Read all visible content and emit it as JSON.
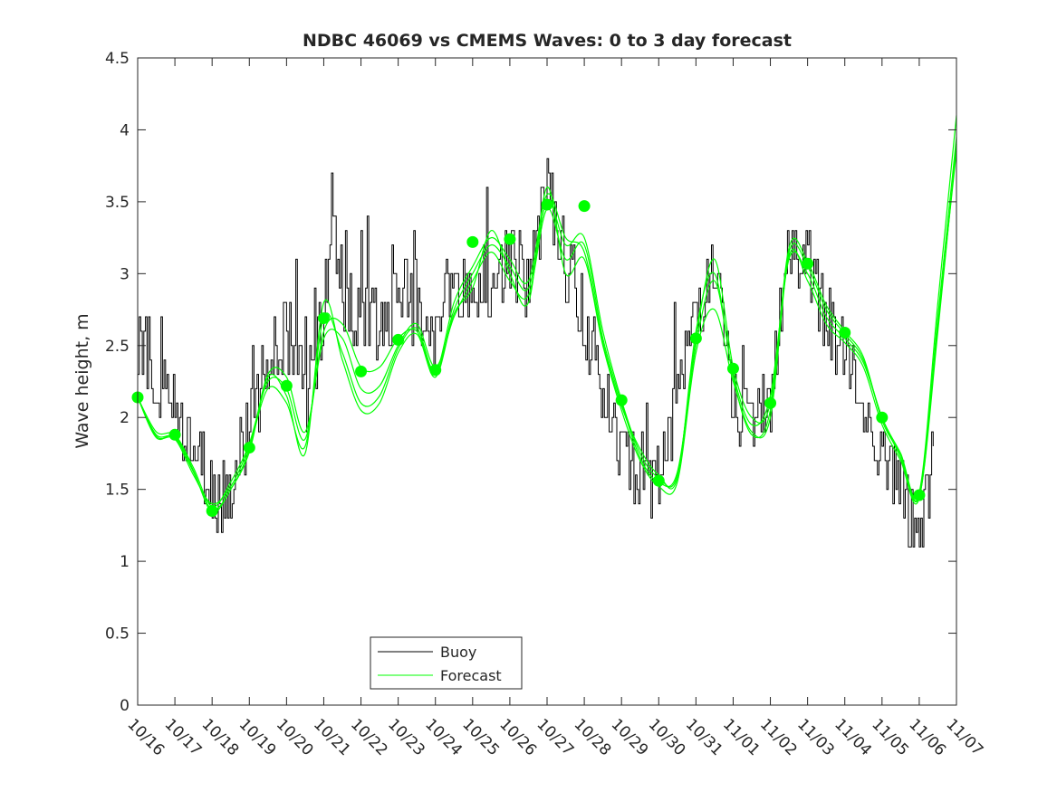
{
  "chart_data": {
    "type": "line",
    "title": "NDBC 46069 vs CMEMS Waves: 0 to 3 day forecast",
    "xlabel": "",
    "ylabel": "Wave height, m",
    "xlim_day": [
      0,
      22
    ],
    "ylim": [
      0,
      4.5
    ],
    "yticks": [
      0,
      0.5,
      1,
      1.5,
      2,
      2.5,
      3,
      3.5,
      4,
      4.5
    ],
    "ytick_labels": [
      "0",
      "0.5",
      "1",
      "1.5",
      "2",
      "2.5",
      "3",
      "3.5",
      "4",
      "4.5"
    ],
    "xtick_labels": [
      "10/16",
      "10/17",
      "10/18",
      "10/19",
      "10/20",
      "10/21",
      "10/22",
      "10/23",
      "10/24",
      "10/25",
      "10/26",
      "10/27",
      "10/28",
      "10/29",
      "10/30",
      "10/31",
      "11/01",
      "11/02",
      "11/03",
      "11/04",
      "11/05",
      "11/06",
      "11/07"
    ],
    "grid": false,
    "legend": {
      "position": "bottom-center",
      "entries": [
        "Buoy",
        "Forecast"
      ]
    },
    "colors": {
      "buoy": "#000000",
      "forecast": "#00ff00",
      "markers": "#00ff00"
    },
    "buoy": {
      "name": "Buoy",
      "trend_x": [
        0,
        0.2,
        0.5,
        1,
        1.5,
        2,
        2.5,
        3,
        3.5,
        4,
        4.5,
        5,
        5.2,
        5.5,
        6,
        6.5,
        7,
        7.5,
        8,
        8.5,
        9,
        9.5,
        10,
        10.5,
        11,
        11.5,
        11.7,
        12,
        12.5,
        13,
        13.5,
        14,
        14.5,
        15,
        15.5,
        16,
        16.5,
        17,
        17.5,
        18,
        18.5,
        19,
        19.5,
        20,
        20.5,
        21,
        21.4
      ],
      "trend_y": [
        2.6,
        2.5,
        2.2,
        2.1,
        1.8,
        1.5,
        1.5,
        2.0,
        2.4,
        2.6,
        2.1,
        2.7,
        3.5,
        2.8,
        2.7,
        2.7,
        2.9,
        2.7,
        2.5,
        2.9,
        3.0,
        2.8,
        3.1,
        2.9,
        3.6,
        3.1,
        3.0,
        2.7,
        2.2,
        1.8,
        1.6,
        1.5,
        2.1,
        2.8,
        3.0,
        2.1,
        1.9,
        2.1,
        3.2,
        3.1,
        2.6,
        2.5,
        2.1,
        1.8,
        1.5,
        1.25,
        1.7
      ]
    },
    "forecast": {
      "name": "Forecast",
      "x": [
        0,
        0.5,
        1,
        1.5,
        2,
        2.5,
        3,
        3.5,
        4,
        4.5,
        5,
        5.5,
        6,
        6.5,
        7,
        7.5,
        8,
        8.5,
        9,
        9.5,
        10,
        10.5,
        11,
        11.5,
        12,
        12.5,
        13,
        13.5,
        14,
        14.5,
        15,
        15.5,
        16,
        16.5,
        17,
        17.5,
        18,
        18.5,
        19,
        19.5,
        20,
        20.5,
        21,
        21.5,
        22
      ],
      "runs": [
        [
          2.14,
          1.9,
          1.88,
          1.65,
          1.38,
          1.55,
          1.82,
          2.25,
          2.2,
          1.85,
          2.6,
          2.65,
          2.35,
          2.35,
          2.55,
          2.6,
          2.3,
          2.75,
          3.0,
          3.2,
          3.05,
          2.9,
          3.5,
          3.2,
          3.25,
          2.6,
          2.12,
          1.75,
          1.58,
          1.6,
          2.55,
          3.1,
          2.35,
          2.0,
          2.1,
          3.15,
          3.05,
          2.75,
          2.58,
          2.4,
          2.0,
          1.75,
          1.48,
          2.8,
          4.1
        ],
        [
          2.14,
          1.88,
          1.86,
          1.62,
          1.36,
          1.5,
          1.78,
          2.3,
          2.28,
          1.9,
          2.55,
          2.55,
          2.2,
          2.22,
          2.5,
          2.65,
          2.35,
          2.7,
          2.95,
          3.15,
          2.95,
          2.85,
          3.45,
          3.1,
          3.2,
          2.55,
          2.1,
          1.72,
          1.55,
          1.62,
          2.5,
          2.95,
          2.3,
          1.95,
          2.15,
          3.1,
          3.0,
          2.7,
          2.55,
          2.38,
          2.0,
          1.72,
          1.45,
          2.6,
          3.9
        ],
        [
          2.14,
          1.87,
          1.85,
          1.6,
          1.4,
          1.52,
          1.8,
          2.2,
          2.1,
          1.8,
          2.7,
          2.45,
          2.1,
          2.15,
          2.48,
          2.62,
          2.32,
          2.8,
          3.05,
          3.25,
          3.1,
          2.95,
          3.55,
          3.25,
          3.15,
          2.52,
          2.08,
          1.78,
          1.6,
          1.58,
          2.6,
          3.0,
          2.28,
          1.88,
          2.05,
          3.18,
          3.08,
          2.78,
          2.6,
          2.42,
          1.98,
          1.74,
          1.46,
          2.7,
          3.95
        ],
        [
          2.14,
          1.86,
          1.87,
          1.63,
          1.34,
          1.5,
          1.76,
          2.28,
          2.15,
          1.75,
          2.8,
          2.4,
          2.05,
          2.1,
          2.45,
          2.58,
          2.28,
          2.72,
          2.9,
          3.3,
          3.0,
          2.8,
          3.6,
          3.0,
          3.1,
          2.5,
          2.05,
          1.7,
          1.52,
          1.55,
          2.45,
          2.75,
          2.25,
          1.9,
          2.0,
          3.12,
          2.95,
          2.65,
          2.52,
          2.35,
          1.95,
          1.7,
          1.44,
          2.65,
          3.85
        ]
      ]
    },
    "markers": {
      "x": [
        0,
        1,
        2,
        3,
        4,
        5,
        6,
        7,
        8,
        9,
        10,
        11,
        12,
        13,
        14,
        15,
        16,
        17,
        18,
        19,
        20,
        21
      ],
      "y": [
        2.14,
        1.88,
        1.35,
        1.79,
        2.22,
        2.69,
        2.32,
        2.54,
        2.33,
        3.22,
        3.24,
        3.48,
        3.47,
        2.12,
        1.56,
        2.55,
        2.34,
        2.1,
        3.07,
        2.59,
        2.0,
        1.46
      ]
    }
  }
}
